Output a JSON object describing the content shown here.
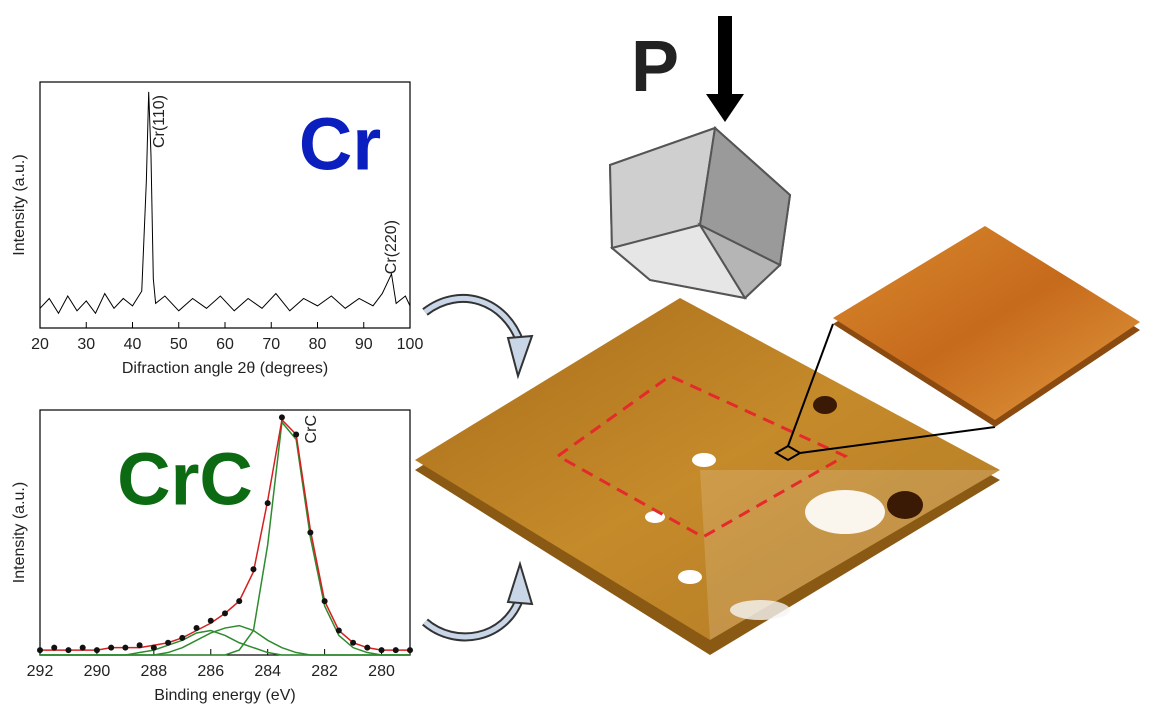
{
  "chart_data": [
    {
      "type": "line",
      "sample_label": "Cr",
      "sample_color": "#0b1fbf",
      "xlabel": "Difraction angle 2θ (degrees)",
      "ylabel": "Intensity (a.u.)",
      "annotations": [
        "Cr(110)",
        "Cr(220)"
      ],
      "xlim": [
        20,
        100
      ],
      "xticks": [
        20,
        30,
        40,
        50,
        60,
        70,
        80,
        90,
        100
      ],
      "ylim": [
        0,
        100
      ],
      "x": [
        20,
        22,
        24,
        26,
        28,
        30,
        32,
        34,
        36,
        38,
        40,
        42,
        43,
        43.5,
        44,
        44.5,
        45,
        47,
        50,
        53,
        56,
        59,
        62,
        65,
        68,
        71,
        74,
        77,
        80,
        83,
        86,
        89,
        92,
        94,
        96,
        97,
        99,
        100
      ],
      "series": [
        {
          "color": "#000000",
          "marker": false,
          "values": [
            8,
            12,
            6,
            13,
            7,
            11,
            6,
            14,
            8,
            12,
            9,
            15,
            60,
            96,
            70,
            20,
            10,
            13,
            7,
            12,
            8,
            13,
            7,
            12,
            8,
            14,
            7,
            12,
            9,
            13,
            8,
            12,
            9,
            14,
            22,
            10,
            13,
            9
          ]
        }
      ]
    },
    {
      "type": "line",
      "sample_label": "CrC",
      "sample_color": "#0c6a12",
      "xlabel": "Binding energy (eV)",
      "ylabel": "Intensity (a.u.)",
      "annotations": [
        "CrC"
      ],
      "xlim": [
        292,
        279
      ],
      "xticks": [
        292,
        290,
        288,
        286,
        284,
        282,
        280
      ],
      "ylim": [
        0,
        100
      ],
      "x": [
        292,
        291.5,
        291,
        290.5,
        290,
        289.5,
        289,
        288.5,
        288,
        287.5,
        287,
        286.5,
        286,
        285.5,
        285,
        284.5,
        284,
        283.5,
        283,
        282.5,
        282,
        281.5,
        281,
        280.5,
        280,
        279.5,
        279
      ],
      "series": [
        {
          "color": "#2e8b2e",
          "marker": false,
          "values": [
            0,
            0,
            0,
            0,
            0,
            0,
            0,
            0,
            0,
            0,
            0,
            0,
            0,
            0,
            2,
            10,
            45,
            95,
            88,
            48,
            20,
            8,
            3,
            1,
            0,
            0,
            0
          ]
        },
        {
          "color": "#2e8b2e",
          "marker": false,
          "values": [
            0,
            0,
            0,
            0,
            0,
            0,
            0,
            0,
            0,
            1,
            3,
            6,
            9,
            11,
            12,
            10,
            6,
            3,
            1,
            0,
            0,
            0,
            0,
            0,
            0,
            0,
            0
          ]
        },
        {
          "color": "#2e8b2e",
          "marker": false,
          "values": [
            0,
            0,
            0,
            0,
            0,
            0,
            0,
            1,
            2,
            4,
            6,
            9,
            10,
            8,
            5,
            3,
            1,
            0,
            0,
            0,
            0,
            0,
            0,
            0,
            0,
            0,
            0
          ]
        },
        {
          "color": "#d42020",
          "marker": false,
          "values": [
            2,
            2,
            2,
            2,
            2,
            3,
            3,
            3,
            4,
            5,
            7,
            10,
            13,
            17,
            22,
            34,
            63,
            96,
            90,
            51,
            22,
            10,
            5,
            3,
            2,
            2,
            2
          ]
        },
        {
          "color": "#111111",
          "marker": true,
          "values": [
            2,
            3,
            2,
            3,
            2,
            3,
            3,
            4,
            3,
            5,
            7,
            11,
            14,
            17,
            22,
            35,
            62,
            97,
            90,
            50,
            22,
            10,
            5,
            3,
            2,
            2,
            2
          ]
        }
      ]
    }
  ],
  "illustration": {
    "force_label": "P"
  }
}
